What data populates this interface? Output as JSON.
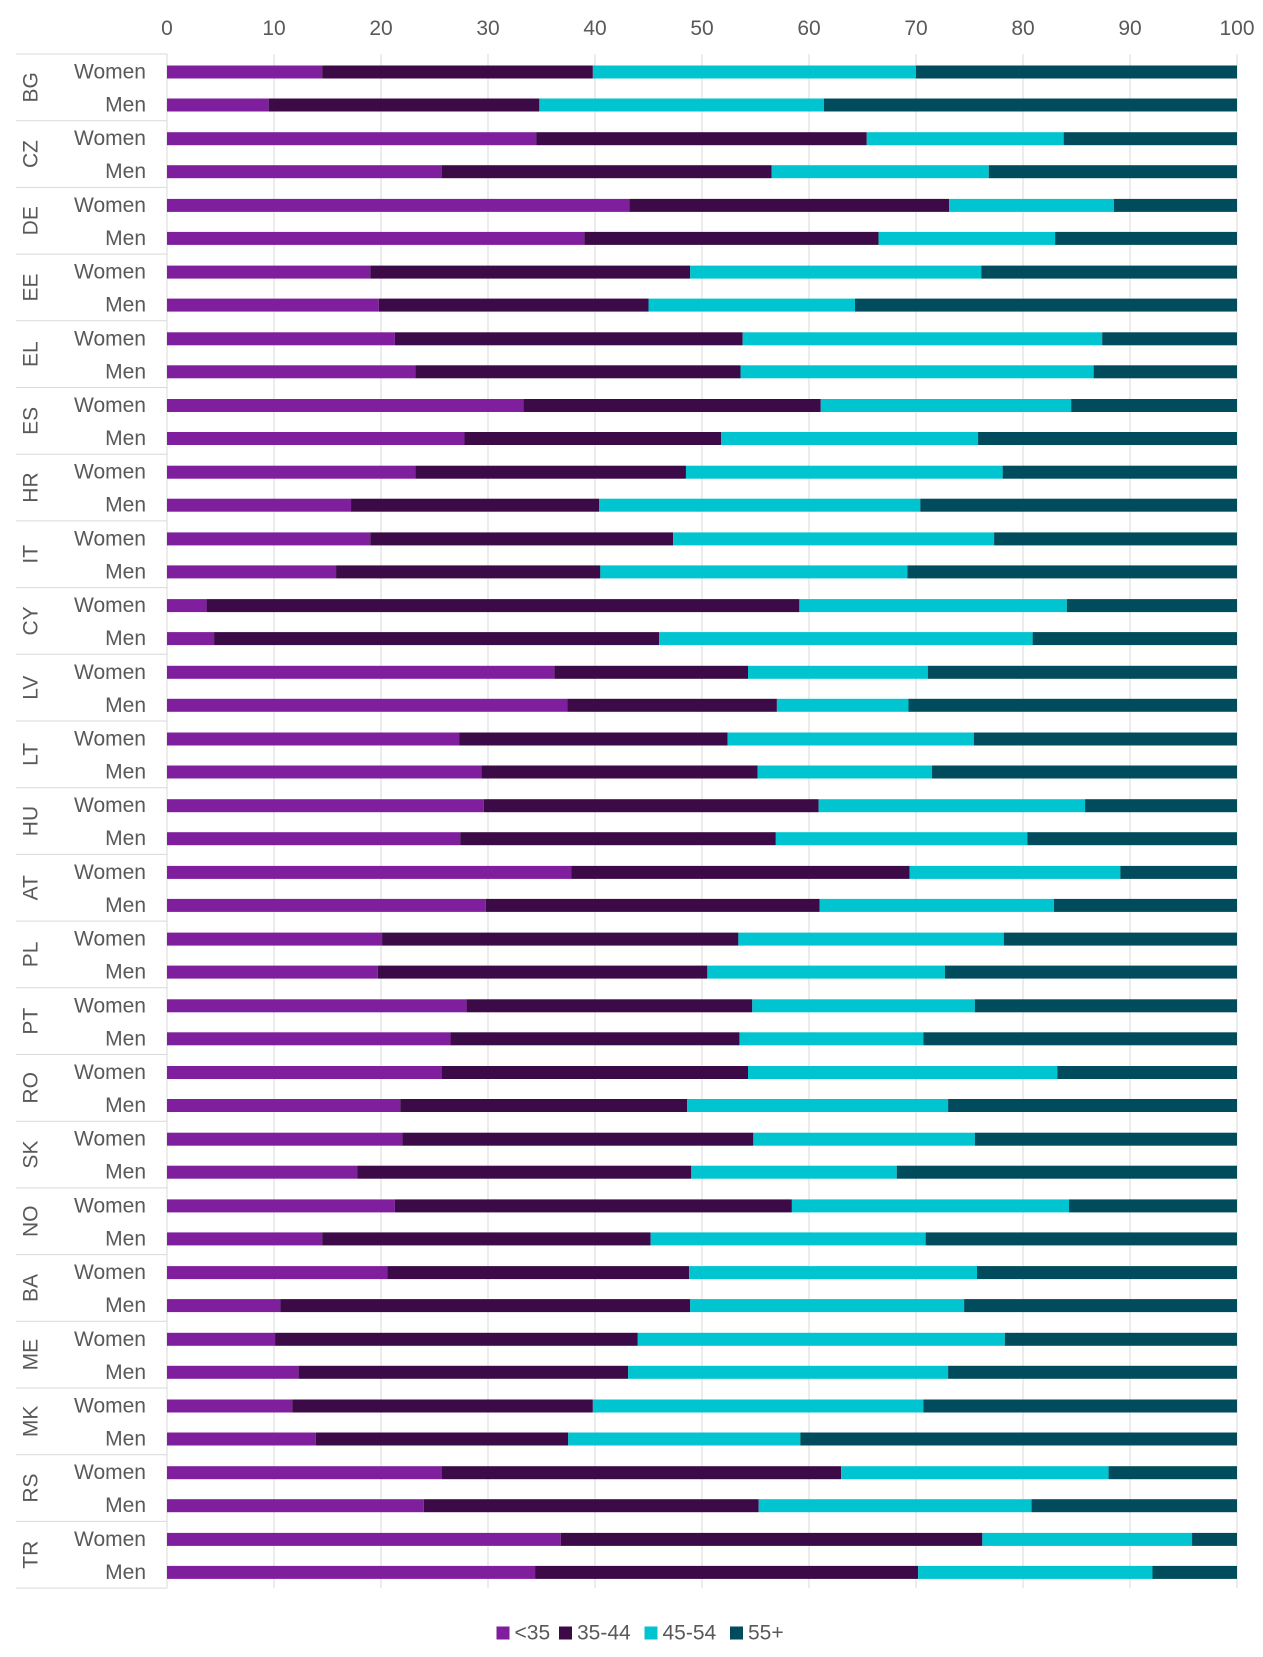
{
  "chart_data": {
    "type": "bar",
    "orientation": "horizontal",
    "stacked": true,
    "xlim": [
      0,
      100
    ],
    "x_ticks": [
      0,
      10,
      20,
      30,
      40,
      50,
      60,
      70,
      80,
      90,
      100
    ],
    "x_tick_labels": [
      "0",
      "10",
      "20",
      "30",
      "40",
      "50",
      "60",
      "70",
      "80",
      "90",
      "100"
    ],
    "x_axis_position": "top",
    "grid": true,
    "legend_position": "bottom",
    "sex_labels": [
      "Women",
      "Men"
    ],
    "series": [
      {
        "name": "<35",
        "color": "#7f1f9e"
      },
      {
        "name": "35-44",
        "color": "#3c0a47"
      },
      {
        "name": "45-54",
        "color": "#00c5d0"
      },
      {
        "name": "55+",
        "color": "#004b5c"
      }
    ],
    "groups": [
      {
        "country": "BG",
        "rows": [
          {
            "sex": "Women",
            "values": [
              14.5,
              25.3,
              30.2,
              30.0
            ]
          },
          {
            "sex": "Men",
            "values": [
              9.5,
              25.3,
              26.6,
              38.6
            ]
          }
        ]
      },
      {
        "country": "CZ",
        "rows": [
          {
            "sex": "Women",
            "values": [
              34.5,
              30.9,
              18.4,
              16.2
            ]
          },
          {
            "sex": "Men",
            "values": [
              25.7,
              30.8,
              20.3,
              23.2
            ]
          }
        ]
      },
      {
        "country": "DE",
        "rows": [
          {
            "sex": "Women",
            "values": [
              43.2,
              29.9,
              15.4,
              11.5
            ]
          },
          {
            "sex": "Men",
            "values": [
              39.0,
              27.5,
              16.5,
              17.0
            ]
          }
        ]
      },
      {
        "country": "EE",
        "rows": [
          {
            "sex": "Women",
            "values": [
              19.0,
              29.9,
              27.2,
              23.9
            ]
          },
          {
            "sex": "Men",
            "values": [
              19.8,
              25.2,
              19.3,
              35.7
            ]
          }
        ]
      },
      {
        "country": "EL",
        "rows": [
          {
            "sex": "Women",
            "values": [
              21.3,
              32.5,
              33.6,
              12.6
            ]
          },
          {
            "sex": "Men",
            "values": [
              23.2,
              30.4,
              33.0,
              13.4
            ]
          }
        ]
      },
      {
        "country": "ES",
        "rows": [
          {
            "sex": "Women",
            "values": [
              33.3,
              27.8,
              23.4,
              15.5
            ]
          },
          {
            "sex": "Men",
            "values": [
              27.8,
              24.0,
              24.0,
              24.2
            ]
          }
        ]
      },
      {
        "country": "HR",
        "rows": [
          {
            "sex": "Women",
            "values": [
              23.2,
              25.3,
              29.6,
              21.9
            ]
          },
          {
            "sex": "Men",
            "values": [
              17.2,
              23.2,
              30.0,
              29.6
            ]
          }
        ]
      },
      {
        "country": "IT",
        "rows": [
          {
            "sex": "Women",
            "values": [
              19.0,
              28.3,
              30.0,
              22.7
            ]
          },
          {
            "sex": "Men",
            "values": [
              15.8,
              24.7,
              28.7,
              30.8
            ]
          }
        ]
      },
      {
        "country": "CY",
        "rows": [
          {
            "sex": "Women",
            "values": [
              3.7,
              55.4,
              25.0,
              15.9
            ]
          },
          {
            "sex": "Men",
            "values": [
              4.4,
              41.6,
              34.9,
              19.1
            ]
          }
        ]
      },
      {
        "country": "LV",
        "rows": [
          {
            "sex": "Women",
            "values": [
              36.2,
              18.1,
              16.8,
              28.9
            ]
          },
          {
            "sex": "Men",
            "values": [
              37.4,
              19.6,
              12.3,
              30.7
            ]
          }
        ]
      },
      {
        "country": "LT",
        "rows": [
          {
            "sex": "Women",
            "values": [
              27.3,
              25.1,
              23.0,
              24.6
            ]
          },
          {
            "sex": "Men",
            "values": [
              29.4,
              25.8,
              16.3,
              28.5
            ]
          }
        ]
      },
      {
        "country": "HU",
        "rows": [
          {
            "sex": "Women",
            "values": [
              29.6,
              31.3,
              24.9,
              14.2
            ]
          },
          {
            "sex": "Men",
            "values": [
              27.4,
              29.5,
              23.5,
              19.6
            ]
          }
        ]
      },
      {
        "country": "AT",
        "rows": [
          {
            "sex": "Women",
            "values": [
              37.8,
              31.6,
              19.7,
              10.9
            ]
          },
          {
            "sex": "Men",
            "values": [
              29.8,
              31.2,
              21.9,
              17.1
            ]
          }
        ]
      },
      {
        "country": "PL",
        "rows": [
          {
            "sex": "Women",
            "values": [
              20.1,
              33.3,
              24.8,
              21.8
            ]
          },
          {
            "sex": "Men",
            "values": [
              19.7,
              30.8,
              22.2,
              27.3
            ]
          }
        ]
      },
      {
        "country": "PT",
        "rows": [
          {
            "sex": "Women",
            "values": [
              28.0,
              26.7,
              20.8,
              24.5
            ]
          },
          {
            "sex": "Men",
            "values": [
              26.5,
              27.0,
              17.2,
              29.3
            ]
          }
        ]
      },
      {
        "country": "RO",
        "rows": [
          {
            "sex": "Women",
            "values": [
              25.7,
              28.6,
              28.9,
              16.8
            ]
          },
          {
            "sex": "Men",
            "values": [
              21.8,
              26.8,
              24.4,
              27.0
            ]
          }
        ]
      },
      {
        "country": "SK",
        "rows": [
          {
            "sex": "Women",
            "values": [
              22.0,
              32.8,
              20.7,
              24.5
            ]
          },
          {
            "sex": "Men",
            "values": [
              17.8,
              31.2,
              19.2,
              31.8
            ]
          }
        ]
      },
      {
        "country": "NO",
        "rows": [
          {
            "sex": "Women",
            "values": [
              21.3,
              37.1,
              25.9,
              15.7
            ]
          },
          {
            "sex": "Men",
            "values": [
              14.5,
              30.7,
              25.7,
              29.1
            ]
          }
        ]
      },
      {
        "country": "BA",
        "rows": [
          {
            "sex": "Women",
            "values": [
              20.6,
              28.2,
              26.9,
              24.3
            ]
          },
          {
            "sex": "Men",
            "values": [
              10.6,
              38.3,
              25.6,
              25.5
            ]
          }
        ]
      },
      {
        "country": "ME",
        "rows": [
          {
            "sex": "Women",
            "values": [
              10.1,
              33.9,
              34.3,
              21.7
            ]
          },
          {
            "sex": "Men",
            "values": [
              12.3,
              30.8,
              29.9,
              27.0
            ]
          }
        ]
      },
      {
        "country": "MK",
        "rows": [
          {
            "sex": "Women",
            "values": [
              11.7,
              28.1,
              30.9,
              29.3
            ]
          },
          {
            "sex": "Men",
            "values": [
              13.9,
              23.6,
              21.7,
              40.8
            ]
          }
        ]
      },
      {
        "country": "RS",
        "rows": [
          {
            "sex": "Women",
            "values": [
              25.7,
              37.3,
              25.0,
              12.0
            ]
          },
          {
            "sex": "Men",
            "values": [
              24.0,
              31.3,
              25.5,
              19.2
            ]
          }
        ]
      },
      {
        "country": "TR",
        "rows": [
          {
            "sex": "Women",
            "values": [
              36.8,
              39.4,
              19.6,
              4.2
            ]
          },
          {
            "sex": "Men",
            "values": [
              34.4,
              35.8,
              21.9,
              7.9
            ]
          }
        ]
      }
    ]
  }
}
